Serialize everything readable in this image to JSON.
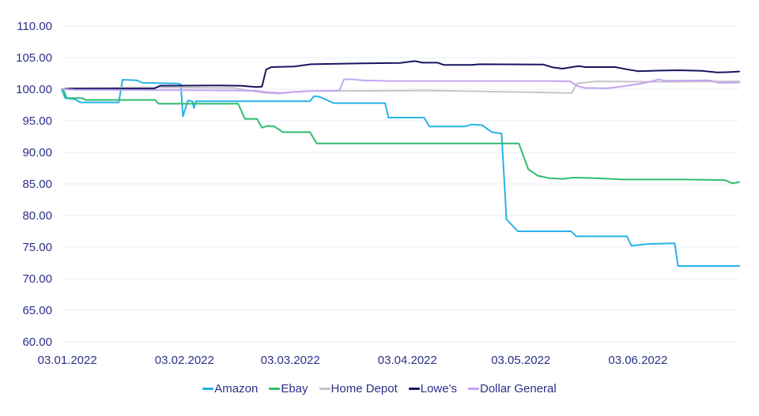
{
  "colors": {
    "axis_text": "#2B3087",
    "gridline": "#E7EDF8",
    "background": "#FFFFFF"
  },
  "chart_data": {
    "type": "line",
    "title": "",
    "xlabel": "",
    "ylabel": "",
    "grid": "horizontal",
    "legend_position": "bottom",
    "x_axis": {
      "unit": "days since 03.01.2022",
      "min_day": -1.5,
      "max_day": 177.8,
      "ticks": [
        {
          "label": "03.01.2022",
          "day": 0
        },
        {
          "label": "03.02.2022",
          "day": 31
        },
        {
          "label": "03.03.2022",
          "day": 59
        },
        {
          "label": "03.04.2022",
          "day": 90
        },
        {
          "label": "03.05.2022",
          "day": 120
        },
        {
          "label": "03.06.2022",
          "day": 151
        }
      ]
    },
    "y_axis": {
      "min": 60,
      "max": 110,
      "step": 5,
      "tick_labels": [
        "110.00",
        "105.00",
        "100.00",
        "95.00",
        "90.00",
        "85.00",
        "80.00",
        "75.00",
        "70.00",
        "65.00",
        "60.00"
      ]
    },
    "series": [
      {
        "name": "Amazon",
        "color": "#27B2E9",
        "points": [
          [
            -1.5,
            100
          ],
          [
            -0.6,
            98.6
          ],
          [
            2,
            98.4
          ],
          [
            3.5,
            97.9
          ],
          [
            13.6,
            97.9
          ],
          [
            14.6,
            101.5
          ],
          [
            18.4,
            101.4
          ],
          [
            20,
            101.0
          ],
          [
            29.3,
            100.9
          ],
          [
            30,
            100.8
          ],
          [
            30.6,
            95.7
          ],
          [
            31.9,
            98.2
          ],
          [
            33.1,
            98.1
          ],
          [
            33.5,
            97.0
          ],
          [
            34,
            98.1
          ],
          [
            64.2,
            98.1
          ],
          [
            65.3,
            98.9
          ],
          [
            66.7,
            98.8
          ],
          [
            70.5,
            97.8
          ],
          [
            84.1,
            97.8
          ],
          [
            85,
            95.5
          ],
          [
            94.4,
            95.5
          ],
          [
            95.8,
            94.1
          ],
          [
            105.2,
            94.1
          ],
          [
            106.9,
            94.4
          ],
          [
            109.8,
            94.3
          ],
          [
            112.3,
            93.2
          ],
          [
            114.9,
            93.0
          ],
          [
            116.2,
            79.4
          ],
          [
            119.2,
            77.5
          ],
          [
            133.3,
            77.5
          ],
          [
            134.7,
            76.7
          ],
          [
            148.1,
            76.7
          ],
          [
            149.3,
            75.2
          ],
          [
            153.8,
            75.5
          ],
          [
            160.7,
            75.6
          ],
          [
            161.6,
            72.0
          ],
          [
            177.8,
            72.0
          ]
        ]
      },
      {
        "name": "Ebay",
        "color": "#2EBD6E",
        "points": [
          [
            -1.5,
            100
          ],
          [
            -0.8,
            99.6
          ],
          [
            -0.2,
            98.6
          ],
          [
            4,
            98.6
          ],
          [
            4.8,
            98.3
          ],
          [
            23.2,
            98.3
          ],
          [
            24.2,
            97.7
          ],
          [
            45.2,
            97.7
          ],
          [
            47,
            95.3
          ],
          [
            50.2,
            95.3
          ],
          [
            51.5,
            93.9
          ],
          [
            53,
            94.2
          ],
          [
            54.8,
            94.1
          ],
          [
            57,
            93.2
          ],
          [
            64.2,
            93.2
          ],
          [
            66,
            91.4
          ],
          [
            119.5,
            91.4
          ],
          [
            122,
            87.3
          ],
          [
            124.5,
            86.3
          ],
          [
            127.6,
            85.9
          ],
          [
            131,
            85.8
          ],
          [
            134,
            86.0
          ],
          [
            140,
            85.9
          ],
          [
            147,
            85.7
          ],
          [
            163,
            85.7
          ],
          [
            174.1,
            85.6
          ],
          [
            176,
            85.1
          ],
          [
            177.8,
            85.3
          ]
        ]
      },
      {
        "name": "Home Depot",
        "color": "#C6C5C7",
        "points": [
          [
            -1.5,
            100
          ],
          [
            0,
            100.15
          ],
          [
            20,
            100.3
          ],
          [
            44,
            100.2
          ],
          [
            48,
            99.8
          ],
          [
            52,
            99.45
          ],
          [
            56,
            99.3
          ],
          [
            60,
            99.6
          ],
          [
            64,
            99.7
          ],
          [
            84,
            99.75
          ],
          [
            95,
            99.8
          ],
          [
            105,
            99.7
          ],
          [
            115,
            99.6
          ],
          [
            125,
            99.5
          ],
          [
            132,
            99.4
          ],
          [
            133.5,
            99.4
          ],
          [
            134.8,
            100.9
          ],
          [
            136,
            101.0
          ],
          [
            140,
            101.25
          ],
          [
            150,
            101.2
          ],
          [
            158,
            101.15
          ],
          [
            165,
            101.2
          ],
          [
            177.8,
            101.25
          ]
        ]
      },
      {
        "name": "Lowe's",
        "color": "#151561",
        "points": [
          [
            -1.5,
            100
          ],
          [
            1,
            100.1
          ],
          [
            23,
            100.1
          ],
          [
            24.5,
            100.55
          ],
          [
            40,
            100.6
          ],
          [
            46,
            100.55
          ],
          [
            50,
            100.35
          ],
          [
            51.5,
            100.4
          ],
          [
            52.6,
            103.1
          ],
          [
            54,
            103.5
          ],
          [
            60,
            103.6
          ],
          [
            64.5,
            103.95
          ],
          [
            78,
            104.1
          ],
          [
            88,
            104.15
          ],
          [
            92,
            104.45
          ],
          [
            94,
            104.2
          ],
          [
            98,
            104.2
          ],
          [
            99.6,
            103.85
          ],
          [
            107,
            103.85
          ],
          [
            109,
            103.95
          ],
          [
            126,
            103.9
          ],
          [
            128.5,
            103.45
          ],
          [
            131,
            103.25
          ],
          [
            134,
            103.55
          ],
          [
            135.5,
            103.65
          ],
          [
            137,
            103.5
          ],
          [
            145,
            103.5
          ],
          [
            148,
            103.15
          ],
          [
            151,
            102.85
          ],
          [
            157,
            102.95
          ],
          [
            162,
            103.0
          ],
          [
            168,
            102.9
          ],
          [
            172,
            102.65
          ],
          [
            175,
            102.7
          ],
          [
            177.8,
            102.8
          ]
        ]
      },
      {
        "name": "Dollar General",
        "color": "#C3A4F0",
        "points": [
          [
            -1.5,
            100
          ],
          [
            2,
            99.9
          ],
          [
            30,
            99.85
          ],
          [
            44,
            99.8
          ],
          [
            50,
            99.75
          ],
          [
            53,
            99.5
          ],
          [
            57,
            99.4
          ],
          [
            61,
            99.6
          ],
          [
            64,
            99.7
          ],
          [
            70,
            99.75
          ],
          [
            72,
            99.8
          ],
          [
            73.2,
            101.55
          ],
          [
            75,
            101.6
          ],
          [
            78,
            101.4
          ],
          [
            85,
            101.3
          ],
          [
            128,
            101.3
          ],
          [
            133,
            101.25
          ],
          [
            135,
            100.5
          ],
          [
            137,
            100.2
          ],
          [
            143,
            100.15
          ],
          [
            147,
            100.45
          ],
          [
            152,
            100.9
          ],
          [
            155,
            101.3
          ],
          [
            156.5,
            101.55
          ],
          [
            158,
            101.35
          ],
          [
            170,
            101.4
          ],
          [
            172.5,
            101.0
          ],
          [
            177.8,
            101.05
          ]
        ]
      }
    ]
  },
  "legend": {
    "items": [
      "Amazon",
      "Ebay",
      "Home Depot",
      "Lowe's",
      "Dollar General"
    ]
  }
}
